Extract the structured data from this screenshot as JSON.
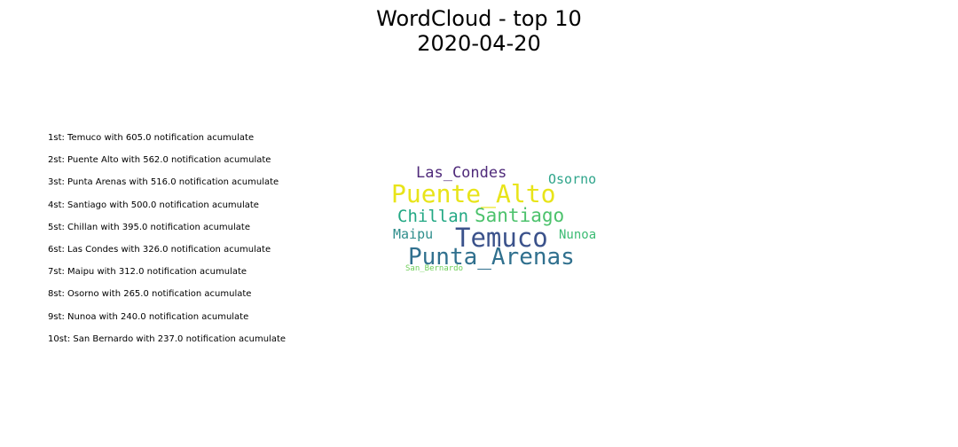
{
  "figure": {
    "title_line1": "WordCloud - top 10",
    "title_line2": "2020-04-20"
  },
  "ranking": [
    "1st: Temuco with 605.0 notification acumulate",
    "2st: Puente Alto with 562.0 notification acumulate",
    "3st: Punta Arenas with 516.0 notification acumulate",
    "4st: Santiago with 500.0 notification acumulate",
    "5st: Chillan with 395.0 notification acumulate",
    "6st: Las Condes with 326.0 notification acumulate",
    "7st: Maipu with 312.0 notification acumulate",
    "8st: Osorno with 265.0 notification acumulate",
    "9st: Nunoa with 240.0 notification acumulate",
    "10st: San Bernardo with 237.0 notification acumulate"
  ],
  "wordcloud": {
    "words": [
      {
        "text": "Las_Condes",
        "color": "#4f2a7a"
      },
      {
        "text": "Osorno",
        "color": "#2fa58b"
      },
      {
        "text": "Puente_Alto",
        "color": "#e8e419"
      },
      {
        "text": "Chillan",
        "color": "#22a884"
      },
      {
        "text": "Santiago",
        "color": "#4cc26c"
      },
      {
        "text": "Maipu",
        "color": "#2e8e8c"
      },
      {
        "text": "Temuco",
        "color": "#3b528b"
      },
      {
        "text": "Nunoa",
        "color": "#3dbc74"
      },
      {
        "text": "Punta_Arenas",
        "color": "#30708e"
      },
      {
        "text": "San_Bernardo",
        "color": "#6ece58"
      }
    ]
  }
}
